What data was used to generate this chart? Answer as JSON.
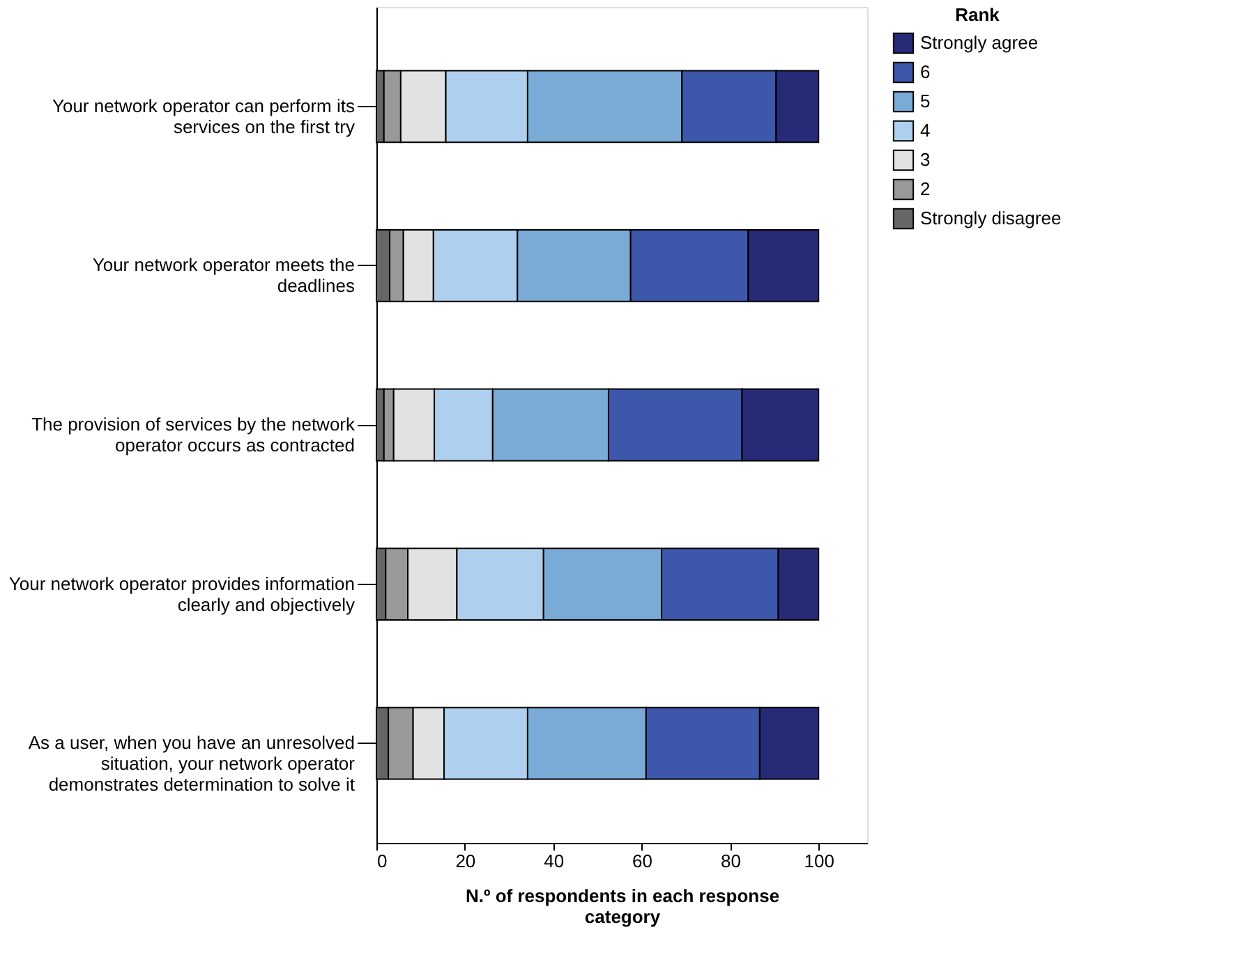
{
  "chart_data": {
    "type": "bar",
    "orientation": "horizontal",
    "stacked": true,
    "categories": [
      "Your network operator can perform its\nservices on the first try",
      "Your network operator meets the\ndeadlines",
      "The provision of services by the network\noperator occurs as contracted",
      "Your network operator provides information\nclearly and objectively",
      "As a user, when you have an unresolved\nsituation, your network operator\ndemonstrates determination to solve it"
    ],
    "series": [
      {
        "name": "Strongly disagree",
        "color": "#666666",
        "values": [
          1.7,
          3.0,
          1.7,
          2.1,
          2.7
        ]
      },
      {
        "name": "2",
        "color": "#999999",
        "values": [
          3.8,
          3.1,
          2.2,
          5.0,
          5.6
        ]
      },
      {
        "name": "3",
        "color": "#e2e2e2",
        "values": [
          10.2,
          6.8,
          9.2,
          11.1,
          7.0
        ]
      },
      {
        "name": "4",
        "color": "#aed0ee",
        "values": [
          18.5,
          19.0,
          13.2,
          19.6,
          18.9
        ]
      },
      {
        "name": "5",
        "color": "#7aaad6",
        "values": [
          34.9,
          25.6,
          26.2,
          26.7,
          26.8
        ]
      },
      {
        "name": "6",
        "color": "#3d57aa",
        "values": [
          21.3,
          26.6,
          30.2,
          26.4,
          25.7
        ]
      },
      {
        "name": "Strongly agree",
        "color": "#272a77",
        "values": [
          9.6,
          15.9,
          17.3,
          9.1,
          13.3
        ]
      }
    ],
    "xlabel": "N.º of respondents in each response\ncategory",
    "legend_title": "Rank",
    "legend": "top right",
    "xlim": [
      0,
      111
    ],
    "xticks": [
      0,
      20,
      40,
      60,
      80,
      100
    ],
    "grid": false
  }
}
